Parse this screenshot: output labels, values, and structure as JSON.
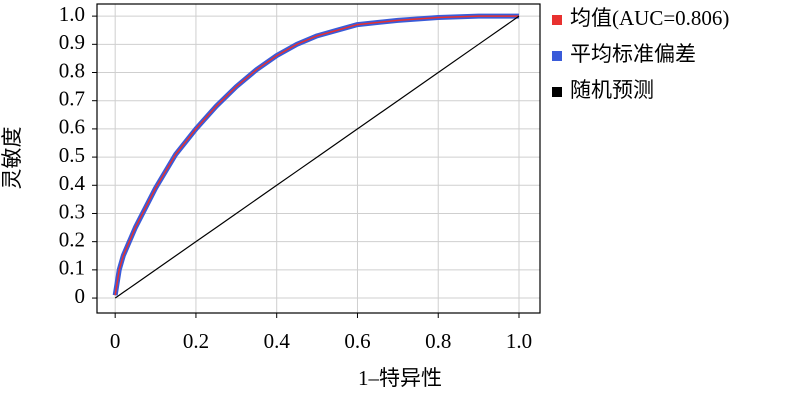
{
  "chart_data": {
    "type": "line",
    "xlabel": "1–特异性",
    "ylabel": "灵敏度",
    "x": [
      0,
      0.01,
      0.02,
      0.05,
      0.1,
      0.15,
      0.2,
      0.25,
      0.3,
      0.35,
      0.4,
      0.45,
      0.5,
      0.55,
      0.6,
      0.7,
      0.8,
      0.9,
      1.0
    ],
    "series": [
      {
        "name": "均值(AUC=0.806)",
        "color": "#e8312f",
        "line_width": 1.5,
        "values": [
          0.01,
          0.1,
          0.15,
          0.25,
          0.39,
          0.51,
          0.6,
          0.68,
          0.75,
          0.81,
          0.86,
          0.9,
          0.93,
          0.95,
          0.97,
          0.985,
          0.995,
          1.0,
          1.0
        ]
      },
      {
        "name": "平均标准偏差",
        "color": "#3a5bd9",
        "line_width": 5,
        "values": [
          0.01,
          0.1,
          0.15,
          0.25,
          0.39,
          0.51,
          0.6,
          0.68,
          0.75,
          0.81,
          0.86,
          0.9,
          0.93,
          0.95,
          0.97,
          0.985,
          0.995,
          1.0,
          1.0
        ]
      },
      {
        "name": "随机预测",
        "color": "#000000",
        "line_width": 1.2,
        "values": [
          0,
          0.01,
          0.02,
          0.05,
          0.1,
          0.15,
          0.2,
          0.25,
          0.3,
          0.35,
          0.4,
          0.45,
          0.5,
          0.55,
          0.6,
          0.7,
          0.8,
          0.9,
          1.0
        ]
      }
    ],
    "xlim": [
      -0.045,
      1.052
    ],
    "ylim": [
      -0.053,
      1.043
    ],
    "xticks": [
      0,
      0.2,
      0.4,
      0.6,
      0.8,
      {
        "value": 1,
        "label": "1.0"
      }
    ],
    "yticks": [
      0,
      0.1,
      0.2,
      0.3,
      0.4,
      0.5,
      0.6,
      0.7,
      0.8,
      0.9,
      {
        "value": 1,
        "label": "1.0"
      }
    ],
    "grid": true,
    "legend": "right"
  }
}
